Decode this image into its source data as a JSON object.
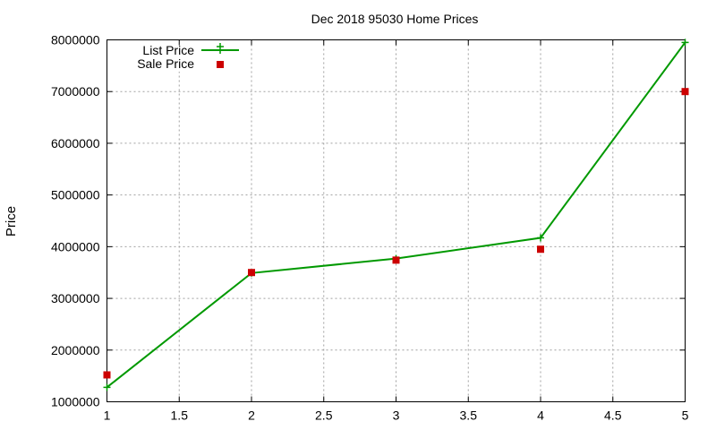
{
  "chart_data": {
    "type": "line",
    "title": "Dec 2018 95030 Home Prices",
    "xlabel": "",
    "ylabel": "Price",
    "xlim": [
      1,
      5
    ],
    "ylim": [
      1000000,
      8000000
    ],
    "x_ticks": [
      "1",
      "1.5",
      "2",
      "2.5",
      "3",
      "3.5",
      "4",
      "4.5",
      "5"
    ],
    "y_ticks": [
      "1000000",
      "2000000",
      "3000000",
      "4000000",
      "5000000",
      "6000000",
      "7000000",
      "8000000"
    ],
    "grid": true,
    "legend_position": "top-left",
    "series": [
      {
        "name": "List Price",
        "style": "line-with-plus-markers",
        "color": "#009900",
        "x": [
          1,
          2,
          3,
          4,
          5
        ],
        "y": [
          1280000,
          3490000,
          3770000,
          4170000,
          7950000
        ]
      },
      {
        "name": "Sale Price",
        "style": "square-markers",
        "color": "#cc0000",
        "x": [
          1,
          2,
          3,
          4,
          5
        ],
        "y": [
          1520000,
          3500000,
          3740000,
          3950000,
          7000000
        ]
      }
    ]
  }
}
